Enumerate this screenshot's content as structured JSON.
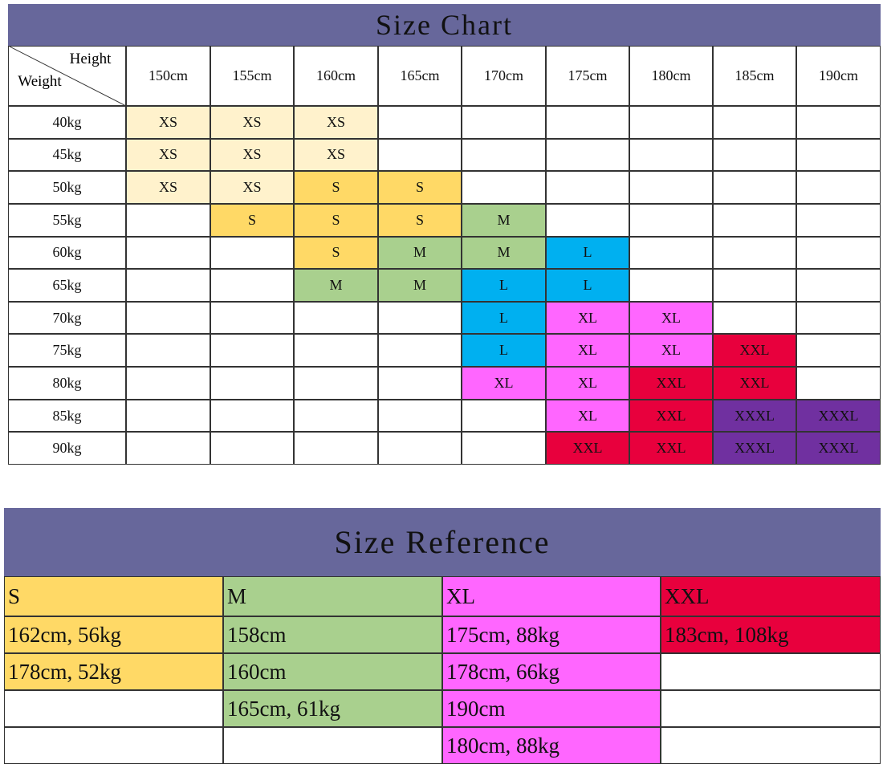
{
  "size_chart": {
    "title": "Size Chart",
    "corner_top": "Height",
    "corner_bottom": "Weight",
    "heights": [
      "150cm",
      "155cm",
      "160cm",
      "165cm",
      "170cm",
      "175cm",
      "180cm",
      "185cm",
      "190cm"
    ],
    "rows": [
      {
        "weight": "40kg",
        "cells": [
          "XS",
          "XS",
          "XS",
          null,
          null,
          null,
          null,
          null,
          null
        ]
      },
      {
        "weight": "45kg",
        "cells": [
          "XS",
          "XS",
          "XS",
          null,
          null,
          null,
          null,
          null,
          null
        ]
      },
      {
        "weight": "50kg",
        "cells": [
          "XS",
          "XS",
          "S",
          "S",
          null,
          null,
          null,
          null,
          null
        ]
      },
      {
        "weight": "55kg",
        "cells": [
          null,
          "S",
          "S",
          "S",
          "M",
          null,
          null,
          null,
          null
        ]
      },
      {
        "weight": "60kg",
        "cells": [
          null,
          null,
          "S",
          "M",
          "M",
          "L",
          null,
          null,
          null
        ]
      },
      {
        "weight": "65kg",
        "cells": [
          null,
          null,
          "M",
          "M",
          "L",
          "L",
          null,
          null,
          null
        ]
      },
      {
        "weight": "70kg",
        "cells": [
          null,
          null,
          null,
          null,
          "L",
          "XL",
          "XL",
          null,
          null
        ]
      },
      {
        "weight": "75kg",
        "cells": [
          null,
          null,
          null,
          null,
          "L",
          "XL",
          "XL",
          "XXL",
          null
        ]
      },
      {
        "weight": "80kg",
        "cells": [
          null,
          null,
          null,
          null,
          "XL",
          "XL",
          "XXL",
          "XXL",
          null
        ]
      },
      {
        "weight": "85kg",
        "cells": [
          null,
          null,
          null,
          null,
          null,
          "XL",
          "XXL",
          "XXXL",
          "XXXL"
        ]
      },
      {
        "weight": "90kg",
        "cells": [
          null,
          null,
          null,
          null,
          null,
          "XXL",
          "XXL",
          "XXXL",
          "XXXL"
        ]
      }
    ],
    "size_colors": {
      "XS": "#fff2cc",
      "S": "#ffd966",
      "M": "#a9d08e",
      "L": "#00b0f0",
      "XL": "#ff66ff",
      "XXL": "#e8003d",
      "XXXL": "#7030a0"
    }
  },
  "size_reference": {
    "title": "Size Reference",
    "columns": [
      {
        "header": "S",
        "color": "#ffd966",
        "items": [
          "162cm, 56kg",
          "178cm, 52kg",
          null,
          null
        ]
      },
      {
        "header": "M",
        "color": "#a9d08e",
        "items": [
          "158cm",
          "160cm",
          "165cm, 61kg",
          null
        ]
      },
      {
        "header": "XL",
        "color": "#ff66ff",
        "items": [
          "175cm, 88kg",
          "178cm, 66kg",
          "190cm",
          "180cm, 88kg"
        ]
      },
      {
        "header": "XXL",
        "color": "#e8003d",
        "items": [
          "183cm, 108kg",
          null,
          null,
          null
        ]
      }
    ]
  }
}
